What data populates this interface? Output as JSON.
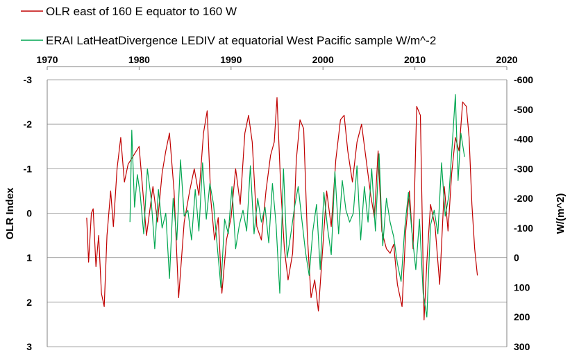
{
  "chart_data": {
    "type": "line",
    "title": "",
    "legend": {
      "placement": "top-left",
      "entries": [
        {
          "label": "OLR east of 160 E equator to 160 W",
          "color": "#c00000"
        },
        {
          "label": "ERAI LatHeatDivergence  LEDIV at equatorial West Pacific sample  W/m^-2",
          "color": "#00a650"
        }
      ]
    },
    "x_axis": {
      "position": "top",
      "range": [
        1970,
        2020
      ],
      "ticks": [
        "1970",
        "1980",
        "1990",
        "2000",
        "2010",
        "2020"
      ]
    },
    "y_left": {
      "label": "OLR Index",
      "range": [
        -3,
        3
      ],
      "inverted": true,
      "ticks": [
        "-3",
        "-2",
        "-1",
        "0",
        "1",
        "2",
        "3"
      ]
    },
    "y_right": {
      "label": "W/(m^2)",
      "range": [
        -600,
        300
      ],
      "inverted": true,
      "ticks": [
        "-600",
        "-500",
        "-400",
        "-300",
        "-200",
        "-100",
        "0",
        "100",
        "200",
        "300"
      ]
    },
    "grid": true,
    "series": [
      {
        "name": "OLR east of 160 E equator to 160 W",
        "axis": "left",
        "color": "#c00000",
        "x": [
          1974.3,
          1974.5,
          1974.8,
          1975.0,
          1975.3,
          1975.6,
          1975.9,
          1976.2,
          1976.5,
          1976.9,
          1977.2,
          1977.6,
          1978.0,
          1978.4,
          1978.8,
          1980.0,
          1980.8,
          1981.5,
          1982.0,
          1982.5,
          1982.9,
          1983.3,
          1983.8,
          1984.3,
          1984.9,
          1985.5,
          1986.0,
          1986.5,
          1987.0,
          1987.4,
          1987.8,
          1988.2,
          1988.6,
          1989.0,
          1989.5,
          1990.0,
          1990.5,
          1991.0,
          1991.5,
          1991.9,
          1992.3,
          1992.8,
          1993.3,
          1993.8,
          1994.3,
          1994.7,
          1995.0,
          1995.4,
          1995.8,
          1996.2,
          1996.7,
          1997.1,
          1997.5,
          1997.9,
          1998.3,
          1998.7,
          1999.1,
          1999.5,
          2000.0,
          2000.4,
          2000.9,
          2001.4,
          2001.9,
          2002.3,
          2002.7,
          2003.2,
          2003.7,
          2004.2,
          2004.7,
          2005.2,
          2005.6,
          2006.0,
          2006.4,
          2006.9,
          2007.3,
          2007.7,
          2008.1,
          2008.6,
          2009.0,
          2009.4,
          2009.8,
          2010.2,
          2010.6,
          2011.0,
          2011.3,
          2011.7,
          2012.2,
          2012.7,
          2013.2,
          2013.6,
          2014.0,
          2014.4,
          2014.8,
          2015.2,
          2015.6,
          2015.9,
          2016.2,
          2016.5,
          2016.8
        ],
        "y": [
          0.1,
          1.1,
          0.0,
          -0.1,
          1.2,
          0.5,
          1.8,
          2.1,
          0.5,
          -0.5,
          0.3,
          -1.0,
          -1.7,
          -0.7,
          -1.1,
          -1.5,
          0.5,
          -0.6,
          0.2,
          -0.9,
          -1.4,
          -1.8,
          -0.5,
          1.9,
          0.2,
          -0.5,
          -1.0,
          -0.4,
          -1.8,
          -2.3,
          -0.3,
          0.6,
          0.1,
          1.8,
          0.6,
          0.1,
          -1.0,
          -0.2,
          -1.8,
          -2.2,
          -1.6,
          0.3,
          0.6,
          -0.5,
          -1.3,
          -1.6,
          -2.6,
          -0.6,
          0.8,
          1.5,
          0.9,
          -1.2,
          -2.1,
          -1.9,
          0.5,
          1.9,
          1.5,
          2.2,
          0.7,
          -0.5,
          0.3,
          -1.2,
          -2.1,
          -2.2,
          -1.4,
          -0.7,
          -1.6,
          -2.0,
          -1.2,
          -0.4,
          0.1,
          -1.4,
          0.4,
          0.8,
          0.9,
          0.7,
          1.6,
          2.1,
          0.4,
          -0.5,
          0.8,
          -2.4,
          -2.2,
          2.4,
          1.1,
          -0.2,
          0.3,
          1.6,
          -0.6,
          0.4,
          -0.9,
          -1.7,
          -1.4,
          -2.5,
          -2.4,
          -1.7,
          -0.2,
          0.8,
          1.4
        ]
      },
      {
        "name": "ERAI LatHeatDivergence  LEDIV at equatorial West Pacific sample  W/m^-2",
        "axis": "right",
        "color": "#00a650",
        "x": [
          1979.0,
          1979.2,
          1979.5,
          1979.8,
          1980.1,
          1980.5,
          1980.9,
          1981.3,
          1981.7,
          1982.1,
          1982.5,
          1982.9,
          1983.3,
          1983.7,
          1984.1,
          1984.5,
          1984.9,
          1985.3,
          1985.7,
          1986.1,
          1986.5,
          1986.9,
          1987.3,
          1987.7,
          1988.1,
          1988.5,
          1988.9,
          1989.3,
          1989.7,
          1990.1,
          1990.5,
          1990.9,
          1991.3,
          1991.7,
          1992.1,
          1992.5,
          1992.9,
          1993.3,
          1993.7,
          1994.1,
          1994.5,
          1994.9,
          1995.3,
          1995.7,
          1996.1,
          1996.5,
          1996.9,
          1997.3,
          1997.7,
          1998.1,
          1998.5,
          1998.9,
          1999.3,
          1999.7,
          2000.1,
          2000.5,
          2000.9,
          2001.3,
          2001.7,
          2002.1,
          2002.5,
          2002.9,
          2003.3,
          2003.7,
          2004.1,
          2004.5,
          2004.9,
          2005.3,
          2005.7,
          2006.1,
          2006.5,
          2006.9,
          2007.3,
          2007.7,
          2008.1,
          2008.5,
          2008.9,
          2009.3,
          2009.7,
          2010.1,
          2010.5,
          2010.9,
          2011.3,
          2011.7,
          2012.1,
          2012.5,
          2012.9,
          2013.3,
          2013.7,
          2014.1,
          2014.4,
          2014.7,
          2015.0,
          2015.4
        ],
        "y": [
          -120,
          -430,
          -170,
          -280,
          -220,
          -80,
          -300,
          -200,
          -30,
          -230,
          -100,
          -150,
          70,
          -200,
          -60,
          -330,
          -140,
          -160,
          -60,
          -230,
          -90,
          -320,
          -130,
          -250,
          -180,
          -40,
          100,
          -130,
          -80,
          -240,
          -30,
          -110,
          -160,
          -90,
          -310,
          -80,
          -200,
          -120,
          -170,
          -50,
          -250,
          -110,
          120,
          -300,
          0,
          -80,
          -170,
          -240,
          -130,
          -20,
          60,
          -90,
          -180,
          40,
          -220,
          -100,
          -10,
          -290,
          -80,
          -260,
          -160,
          -120,
          -150,
          -310,
          -60,
          -240,
          -120,
          -300,
          -90,
          -350,
          -40,
          -200,
          -120,
          -70,
          20,
          80,
          -100,
          -220,
          -80,
          40,
          -130,
          120,
          200,
          -110,
          -160,
          -80,
          -320,
          -140,
          -210,
          -400,
          -550,
          -260,
          -420,
          -340
        ]
      }
    ]
  }
}
